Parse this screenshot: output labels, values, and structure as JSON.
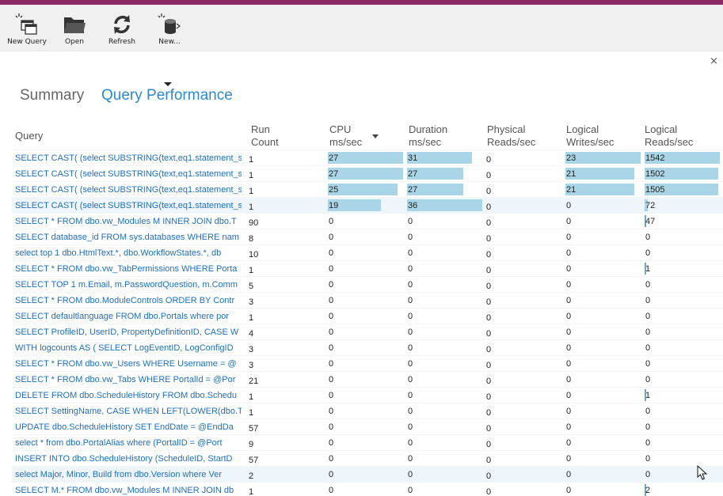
{
  "toolbar": {
    "buttons": [
      {
        "label": "New Query",
        "icon": "new-query-icon"
      },
      {
        "label": "Open",
        "icon": "open-folder-icon"
      },
      {
        "label": "Refresh",
        "icon": "refresh-icon"
      },
      {
        "label": "New...",
        "icon": "new-database-icon"
      }
    ]
  },
  "close_label": "×",
  "tabs": {
    "summary": "Summary",
    "query_performance": "Query Performance",
    "active": "Query Performance"
  },
  "columns": {
    "query": "Query",
    "run_count": [
      "Run",
      "Count"
    ],
    "cpu": [
      "CPU",
      "ms/sec"
    ],
    "duration": [
      "Duration",
      "ms/sec"
    ],
    "physical_reads": [
      "Physical",
      "Reads/sec"
    ],
    "logical_writes": [
      "Logical",
      "Writes/sec"
    ],
    "logical_reads": [
      "Logical",
      "Reads/sec"
    ],
    "sorted_by": "cpu"
  },
  "accent_colors": {
    "bar": "#a9d5e6",
    "link": "#1e6fc0",
    "tab_active": "#2a8ad4",
    "topbar": "#8c2a63"
  },
  "rows": [
    {
      "query": "SELECT CAST( (select SUBSTRING(text,eq1.statement_s",
      "run": "1",
      "cpu": "27",
      "dur": "31",
      "phy": "0",
      "lw": "23",
      "lr": "1542"
    },
    {
      "query": "SELECT CAST( (select SUBSTRING(text,eq1.statement_s",
      "run": "1",
      "cpu": "27",
      "dur": "27",
      "phy": "0",
      "lw": "21",
      "lr": "1502"
    },
    {
      "query": "SELECT CAST( (select SUBSTRING(text,eq1.statement_s",
      "run": "1",
      "cpu": "25",
      "dur": "27",
      "phy": "0",
      "lw": "21",
      "lr": "1505"
    },
    {
      "query": "SELECT CAST( (select SUBSTRING(text,eq1.statement_s",
      "run": "1",
      "cpu": "19",
      "dur": "36",
      "phy": "0",
      "lw": "0",
      "lr": "72",
      "selected": true
    },
    {
      "query": "SELECT * FROM dbo.vw_Modules M INNER JOIN dbo.T",
      "run": "90",
      "cpu": "0",
      "dur": "0",
      "phy": "0",
      "lw": "0",
      "lr": "47"
    },
    {
      "query": "SELECT database_id FROM sys.databases WHERE nam",
      "run": "8",
      "cpu": "0",
      "dur": "0",
      "phy": "0",
      "lw": "0",
      "lr": "0"
    },
    {
      "query": "select top 1 dbo.HtmlText.*, dbo.WorkflowStates.*, db",
      "run": "10",
      "cpu": "0",
      "dur": "0",
      "phy": "0",
      "lw": "0",
      "lr": "0"
    },
    {
      "query": "SELECT * FROM dbo.vw_TabPermissions WHERE Porta",
      "run": "1",
      "cpu": "0",
      "dur": "0",
      "phy": "0",
      "lw": "0",
      "lr": "1"
    },
    {
      "query": "SELECT TOP 1 m.Email, m.PasswordQuestion, m.Comm",
      "run": "5",
      "cpu": "0",
      "dur": "0",
      "phy": "0",
      "lw": "0",
      "lr": "0"
    },
    {
      "query": "SELECT * FROM dbo.ModuleControls ORDER BY Contr",
      "run": "3",
      "cpu": "0",
      "dur": "0",
      "phy": "0",
      "lw": "0",
      "lr": "0"
    },
    {
      "query": "SELECT defaultlanguage FROM dbo.Portals where por",
      "run": "1",
      "cpu": "0",
      "dur": "0",
      "phy": "0",
      "lw": "0",
      "lr": "0"
    },
    {
      "query": "SELECT ProfileID, UserID, PropertyDefinitionID, CASE W",
      "run": "4",
      "cpu": "0",
      "dur": "0",
      "phy": "0",
      "lw": "0",
      "lr": "0"
    },
    {
      "query": "WITH logcounts AS ( SELECT LogEventID, LogConfigID",
      "run": "3",
      "cpu": "0",
      "dur": "0",
      "phy": "0",
      "lw": "0",
      "lr": "0"
    },
    {
      "query": "SELECT * FROM dbo.vw_Users WHERE Username = @",
      "run": "3",
      "cpu": "0",
      "dur": "0",
      "phy": "0",
      "lw": "0",
      "lr": "0"
    },
    {
      "query": "SELECT * FROM dbo.vw_Tabs WHERE PortalId = @Por",
      "run": "21",
      "cpu": "0",
      "dur": "0",
      "phy": "0",
      "lw": "0",
      "lr": "0"
    },
    {
      "query": "DELETE FROM dbo.ScheduleHistory FROM dbo.Schedu",
      "run": "1",
      "cpu": "0",
      "dur": "0",
      "phy": "0",
      "lw": "0",
      "lr": "1"
    },
    {
      "query": "SELECT SettingName, CASE WHEN LEFT(LOWER(dbo.T",
      "run": "1",
      "cpu": "0",
      "dur": "0",
      "phy": "0",
      "lw": "0",
      "lr": "0"
    },
    {
      "query": "UPDATE dbo.ScheduleHistory SET EndDate = @EndDa",
      "run": "57",
      "cpu": "0",
      "dur": "0",
      "phy": "0",
      "lw": "0",
      "lr": "0"
    },
    {
      "query": "select * from dbo.PortalAlias where (PortalID = @Port",
      "run": "9",
      "cpu": "0",
      "dur": "0",
      "phy": "0",
      "lw": "0",
      "lr": "0"
    },
    {
      "query": "INSERT INTO dbo.ScheduleHistory (ScheduleID, StartD",
      "run": "57",
      "cpu": "0",
      "dur": "0",
      "phy": "0",
      "lw": "0",
      "lr": "0"
    },
    {
      "query": "select Major, Minor, Build from dbo.Version where Ver",
      "run": "2",
      "cpu": "0",
      "dur": "0",
      "phy": "0",
      "lw": "0",
      "lr": "0",
      "selected": true
    },
    {
      "query": "SELECT M.* FROM dbo.vw_Modules M INNER JOIN db",
      "run": "1",
      "cpu": "0",
      "dur": "0",
      "phy": "0",
      "lw": "0",
      "lr": "2"
    }
  ]
}
